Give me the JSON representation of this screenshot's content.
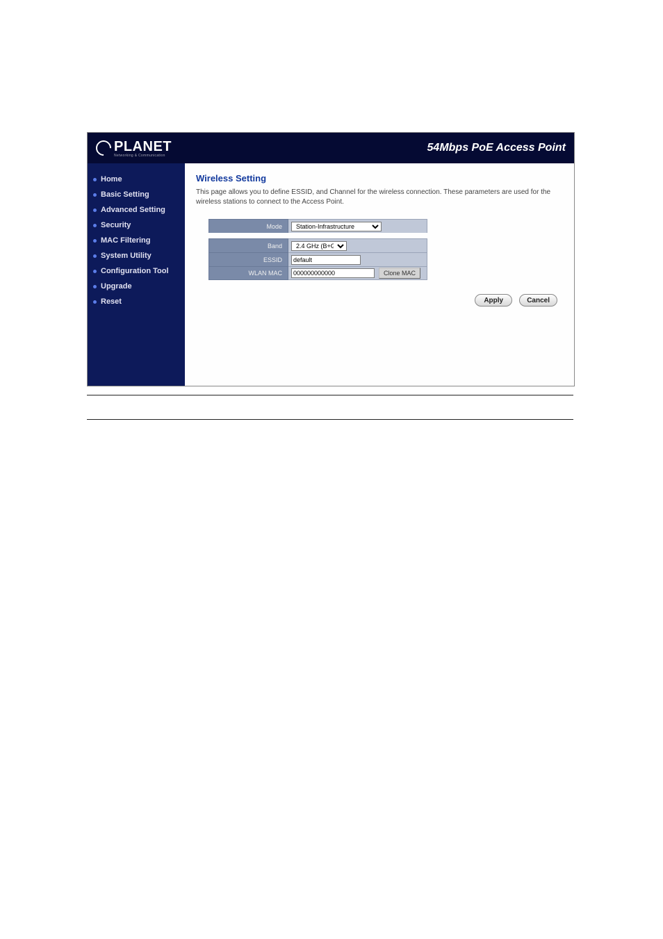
{
  "header": {
    "logo_text": "PLANET",
    "logo_sub": "Networking & Communication",
    "title": "54Mbps PoE Access Point"
  },
  "sidebar": {
    "items": [
      {
        "label": "Home"
      },
      {
        "label": "Basic Setting"
      },
      {
        "label": "Advanced Setting"
      },
      {
        "label": "Security"
      },
      {
        "label": "MAC Filtering"
      },
      {
        "label": "System Utility"
      },
      {
        "label": "Configuration Tool"
      },
      {
        "label": "Upgrade"
      },
      {
        "label": "Reset"
      }
    ]
  },
  "content": {
    "title": "Wireless Setting",
    "description": "This page allows you to define ESSID, and Channel for the wireless connection. These parameters are used for the wireless stations to connect to the Access Point.",
    "fields": {
      "mode": {
        "label": "Mode",
        "value": "Station-Infrastructure"
      },
      "band": {
        "label": "Band",
        "value": "2.4 GHz (B+G)"
      },
      "essid": {
        "label": "ESSID",
        "value": "default"
      },
      "wlanmac": {
        "label": "WLAN MAC",
        "value": "000000000000",
        "clone_btn": "Clone MAC"
      }
    },
    "actions": {
      "apply": "Apply",
      "cancel": "Cancel"
    }
  },
  "colors": {
    "header_bg": "#050a33",
    "sidebar_bg": "#0d1a5a",
    "sidebar_bullet": "#5b7de8",
    "title_color": "#133a9e",
    "form_label_bg": "#7a8aa8",
    "form_value_bg": "#c0c8d8"
  }
}
